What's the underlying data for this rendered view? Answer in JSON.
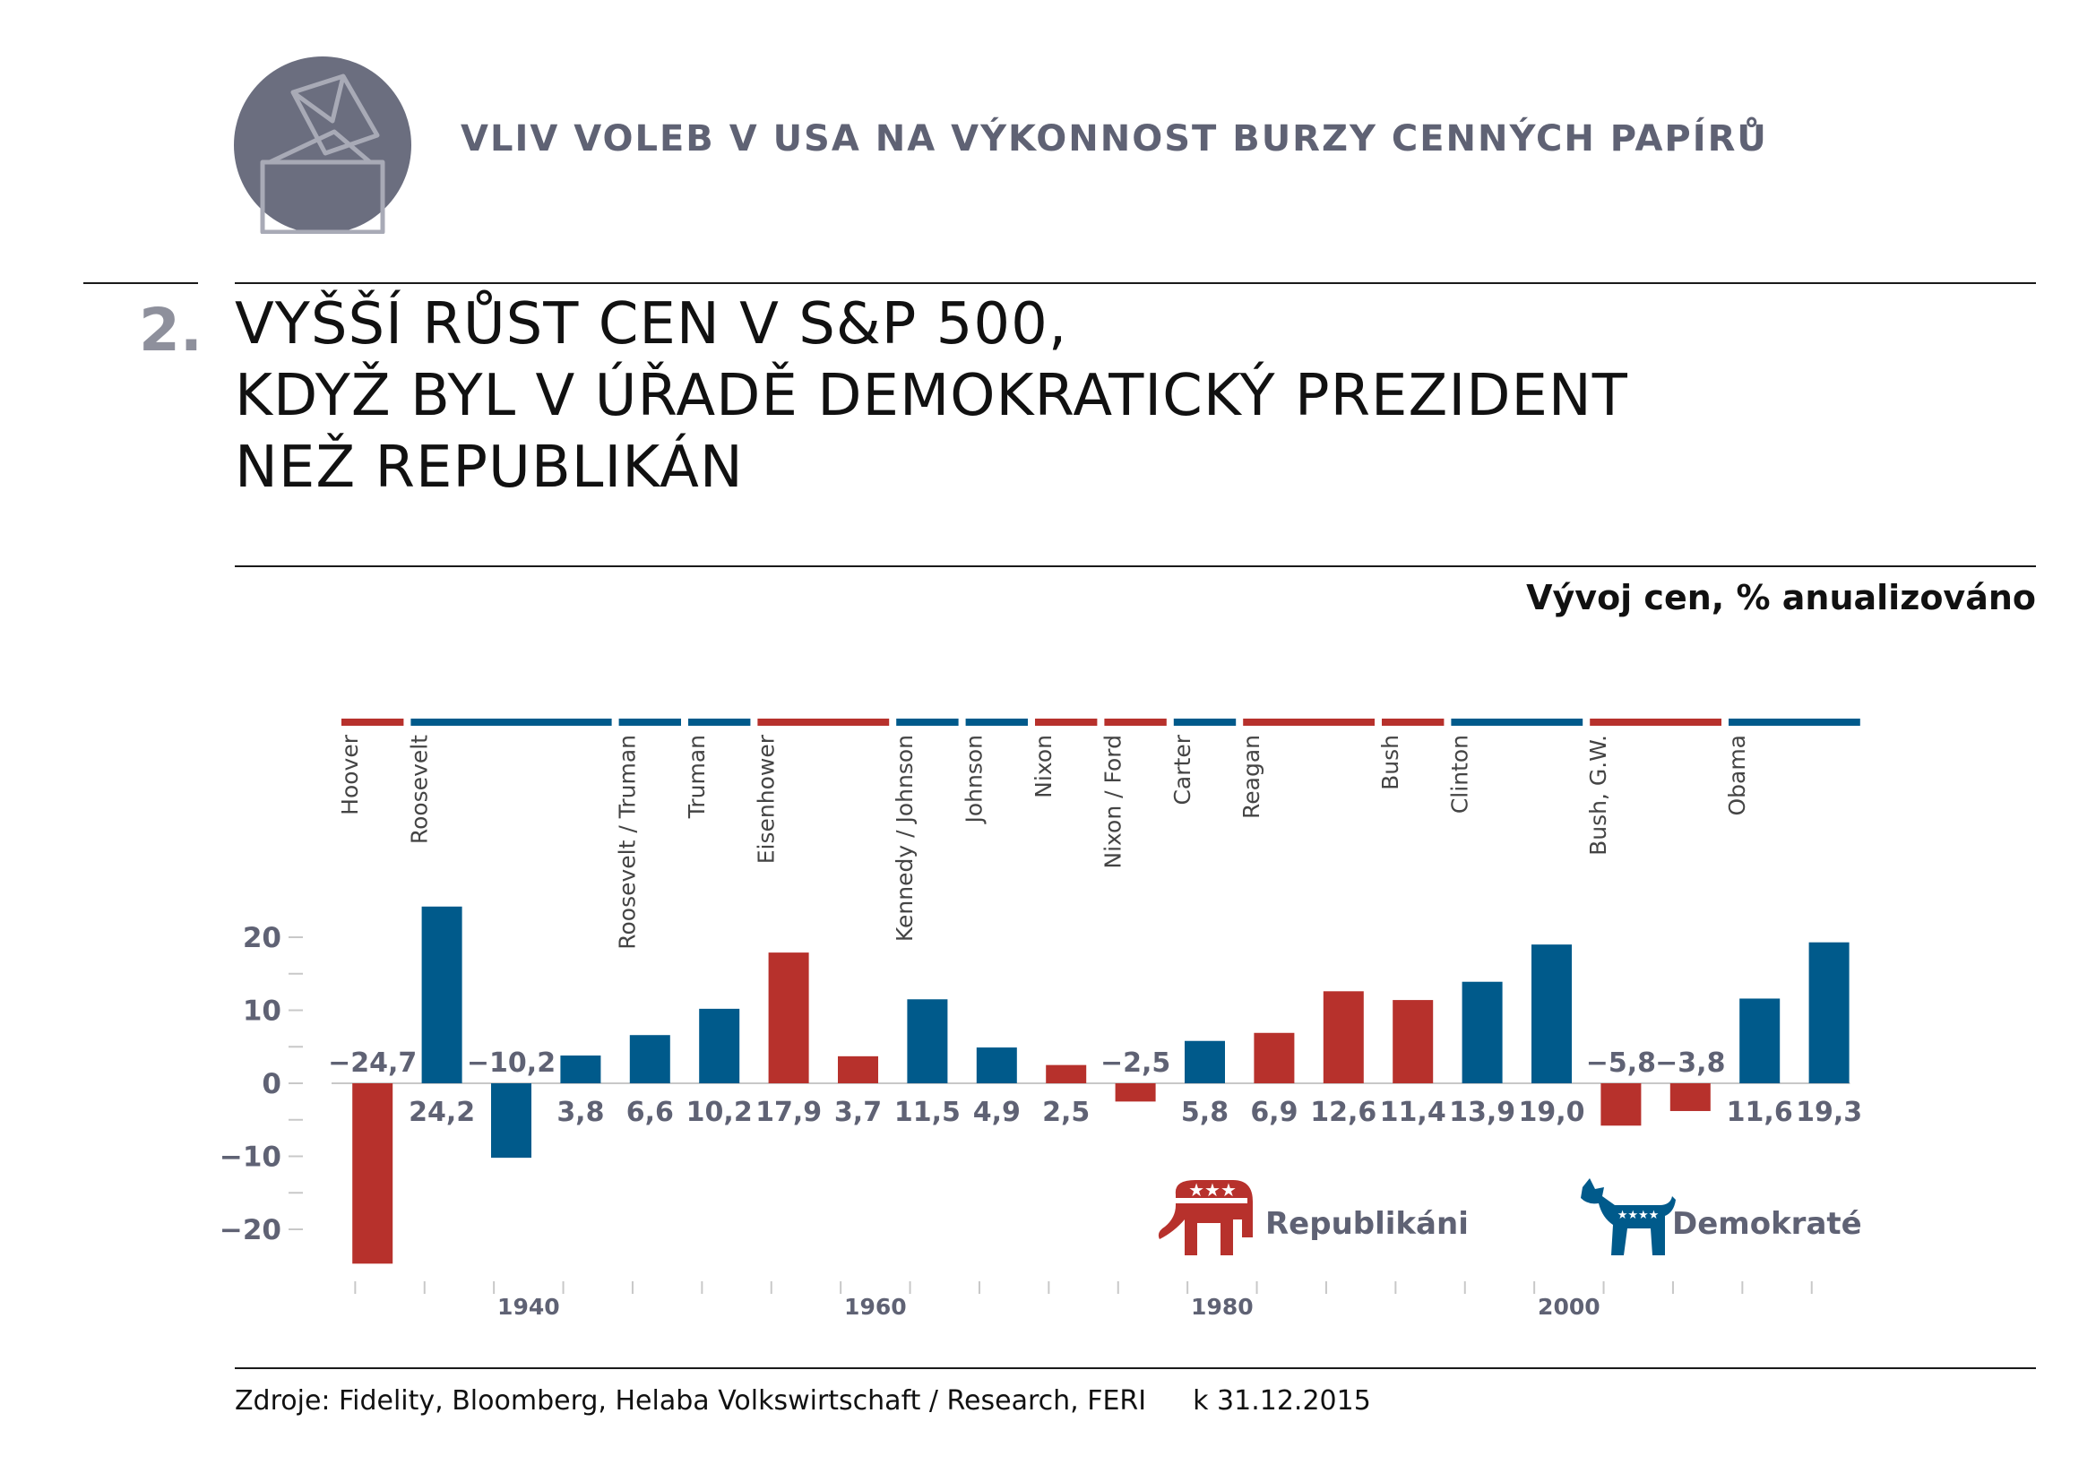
{
  "header": {
    "title": "VLIV VOLEB V USA NA VÝKONNOST BURZY CENNÝCH PAPÍRŮ",
    "icon": "ballot-box-icon"
  },
  "headline": {
    "number": "2.",
    "lines": [
      "VYŠŠÍ RŮST CEN V S&P 500,",
      "KDYŽ BYL V ÚŘADĚ DEMOKRATICKÝ PREZIDENT",
      "NEŽ REPUBLIKÁN"
    ]
  },
  "colors": {
    "republican": "#b7312c",
    "democrat": "#005a8b",
    "icon_circle": "#6b6e7f",
    "axis": "#c8c8c8"
  },
  "chart_data": {
    "type": "bar",
    "title": "Vývoj cen, % anualizováno",
    "ylim": [
      -25,
      21
    ],
    "yticks": [
      -20,
      -10,
      0,
      10,
      20
    ],
    "ytick_labels": [
      "−20",
      "−10",
      "0",
      "10",
      "20"
    ],
    "x_range": [
      1929,
      2016
    ],
    "xticks": [
      1940,
      1960,
      1980,
      2000
    ],
    "xtick_labels": [
      "1940",
      "1960",
      "1980",
      "2000"
    ],
    "bars": [
      {
        "start": 1929,
        "party": "R",
        "value": -24.7,
        "label": "−24,7"
      },
      {
        "start": 1933,
        "party": "D",
        "value": 24.2,
        "label": "24,2"
      },
      {
        "start": 1937,
        "party": "D",
        "value": -10.2,
        "label": "−10,2"
      },
      {
        "start": 1941,
        "party": "D",
        "value": 3.8,
        "label": "3,8"
      },
      {
        "start": 1945,
        "party": "D",
        "value": 6.6,
        "label": "6,6"
      },
      {
        "start": 1949,
        "party": "D",
        "value": 10.2,
        "label": "10,2"
      },
      {
        "start": 1953,
        "party": "R",
        "value": 17.9,
        "label": "17,9"
      },
      {
        "start": 1957,
        "party": "R",
        "value": 3.7,
        "label": "3,7"
      },
      {
        "start": 1961,
        "party": "D",
        "value": 11.5,
        "label": "11,5"
      },
      {
        "start": 1965,
        "party": "D",
        "value": 4.9,
        "label": "4,9"
      },
      {
        "start": 1969,
        "party": "R",
        "value": 2.5,
        "label": "2,5"
      },
      {
        "start": 1973,
        "party": "R",
        "value": -2.5,
        "label": "−2,5"
      },
      {
        "start": 1977,
        "party": "D",
        "value": 5.8,
        "label": "5,8"
      },
      {
        "start": 1981,
        "party": "R",
        "value": 6.9,
        "label": "6,9"
      },
      {
        "start": 1985,
        "party": "R",
        "value": 12.6,
        "label": "12,6"
      },
      {
        "start": 1989,
        "party": "R",
        "value": 11.4,
        "label": "11,4"
      },
      {
        "start": 1993,
        "party": "D",
        "value": 13.9,
        "label": "13,9"
      },
      {
        "start": 1997,
        "party": "D",
        "value": 19.0,
        "label": "19,0"
      },
      {
        "start": 2001,
        "party": "R",
        "value": -5.8,
        "label": "−5,8"
      },
      {
        "start": 2005,
        "party": "R",
        "value": -3.8,
        "label": "−3,8"
      },
      {
        "start": 2009,
        "party": "D",
        "value": 11.6,
        "label": "11,6"
      },
      {
        "start": 2013,
        "party": "D",
        "value": 19.3,
        "label": "19,3"
      }
    ],
    "presidents": [
      {
        "name": "Hoover",
        "start": 1929,
        "end": 1933,
        "party": "R"
      },
      {
        "name": "Roosevelt",
        "start": 1933,
        "end": 1945,
        "party": "D"
      },
      {
        "name": "Roosevelt / Truman",
        "start": 1945,
        "end": 1949,
        "party": "D"
      },
      {
        "name": "Truman",
        "start": 1949,
        "end": 1953,
        "party": "D"
      },
      {
        "name": "Eisenhower",
        "start": 1953,
        "end": 1961,
        "party": "R"
      },
      {
        "name": "Kennedy / Johnson",
        "start": 1961,
        "end": 1965,
        "party": "D"
      },
      {
        "name": "Johnson",
        "start": 1965,
        "end": 1969,
        "party": "D"
      },
      {
        "name": "Nixon",
        "start": 1969,
        "end": 1973,
        "party": "R"
      },
      {
        "name": "Nixon / Ford",
        "start": 1973,
        "end": 1977,
        "party": "R"
      },
      {
        "name": "Carter",
        "start": 1977,
        "end": 1981,
        "party": "D"
      },
      {
        "name": "Reagan",
        "start": 1981,
        "end": 1989,
        "party": "R"
      },
      {
        "name": "Bush",
        "start": 1989,
        "end": 1993,
        "party": "R"
      },
      {
        "name": "Clinton",
        "start": 1993,
        "end": 2001,
        "party": "D"
      },
      {
        "name": "Bush, G.W.",
        "start": 2001,
        "end": 2009,
        "party": "R"
      },
      {
        "name": "Obama",
        "start": 2009,
        "end": 2017,
        "party": "D"
      }
    ],
    "legend": [
      {
        "label": "Republikáni",
        "party": "R",
        "icon": "elephant-icon"
      },
      {
        "label": "Demokraté",
        "party": "D",
        "icon": "donkey-icon"
      }
    ]
  },
  "footer": {
    "source": "Zdroje:  Fidelity, Bloomberg, Helaba Volkswirtschaft / Research, FERI",
    "date": "k 31.12.2015"
  }
}
